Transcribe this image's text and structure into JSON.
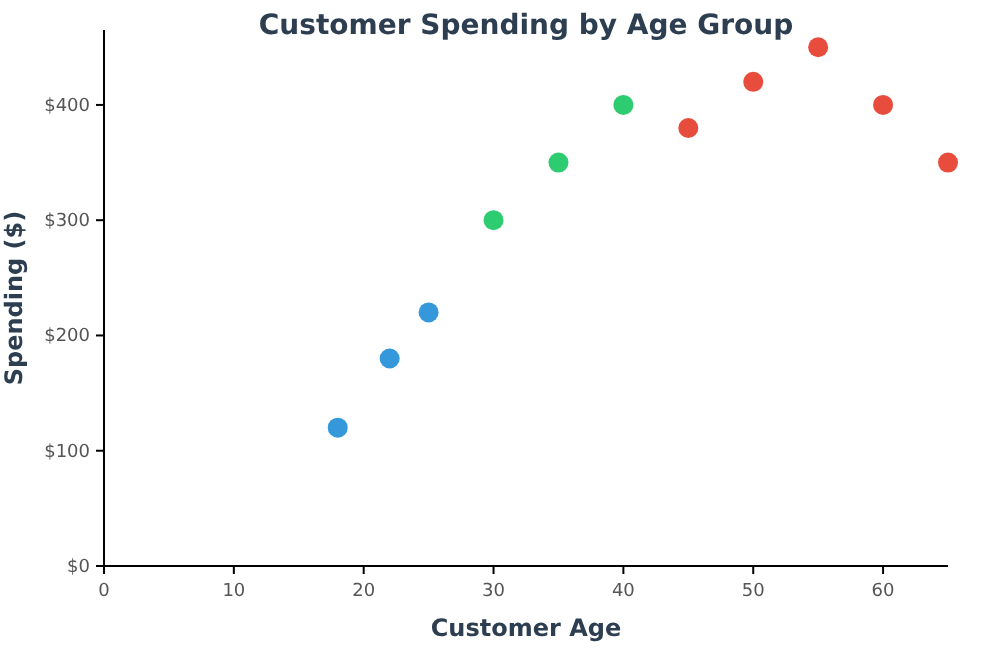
{
  "chart_data": {
    "type": "scatter",
    "title": "Customer Spending by Age Group",
    "xlabel": "Customer Age",
    "ylabel": "Spending ($)",
    "xlim": [
      0,
      65
    ],
    "xticks": [
      0,
      10,
      20,
      30,
      40,
      50,
      60
    ],
    "ylim": [
      0,
      465
    ],
    "yticks": [
      {
        "value": 0,
        "label": "$0"
      },
      {
        "value": 100,
        "label": "$100"
      },
      {
        "value": 200,
        "label": "$200"
      },
      {
        "value": 300,
        "label": "$300"
      },
      {
        "value": 400,
        "label": "$400"
      }
    ],
    "marker": "circle",
    "series": [
      {
        "color": "#3498db",
        "x": [
          18,
          22,
          25
        ],
        "values": [
          120,
          180,
          220
        ]
      },
      {
        "color": "#2ecc71",
        "x": [
          30,
          35,
          40
        ],
        "values": [
          300,
          350,
          400
        ]
      },
      {
        "color": "#e74c3c",
        "x": [
          45,
          50,
          55,
          60,
          65
        ],
        "values": [
          380,
          420,
          450,
          400,
          350
        ]
      }
    ]
  }
}
